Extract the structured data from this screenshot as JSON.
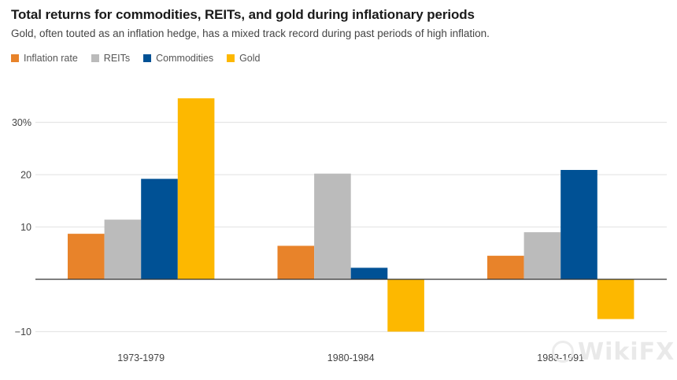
{
  "header": {
    "title": "Total returns for commodities, REITs, and gold during inflationary periods",
    "subtitle": "Gold, often touted as an inflation hedge, has a mixed track record during past periods of high inflation."
  },
  "watermark": {
    "text": "WikiFX",
    "icon": "wikifx-logo-icon"
  },
  "chart_data": {
    "type": "bar",
    "title": "Total returns for commodities, REITs, and gold during inflationary periods",
    "subtitle": "Gold, often touted as an inflation hedge, has a mixed track record during past periods of high inflation.",
    "xlabel": "",
    "ylabel": "",
    "categories": [
      "1973-1979",
      "1980-1984",
      "1988-1991"
    ],
    "series": [
      {
        "name": "Inflation rate",
        "color": "#E8832A",
        "values": [
          8.7,
          6.4,
          4.5
        ]
      },
      {
        "name": "REITs",
        "color": "#BBBBBB",
        "values": [
          11.4,
          20.2,
          9.0
        ]
      },
      {
        "name": "Commodities",
        "color": "#005195",
        "values": [
          19.2,
          2.2,
          20.9
        ]
      },
      {
        "name": "Gold",
        "color": "#FDB800",
        "values": [
          34.6,
          -10.0,
          -7.6
        ]
      }
    ],
    "ylim": [
      -10,
      35
    ],
    "yticks": [
      {
        "value": 30,
        "label": "30%"
      },
      {
        "value": 20,
        "label": "20"
      },
      {
        "value": 10,
        "label": "10"
      },
      {
        "value": -10,
        "label": "−10"
      }
    ],
    "grid": true,
    "legend": "top-left",
    "colors": {
      "gridline": "#E6E6E6",
      "zero_line": "#333333"
    }
  }
}
